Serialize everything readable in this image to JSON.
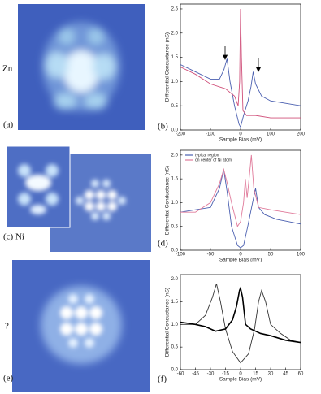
{
  "figure": {
    "labels": [
      "Zn",
      "(a)",
      "(b)",
      "(c) Ni",
      "(d)",
      "?",
      "(e)",
      "(f)"
    ]
  },
  "chart_data": [
    {
      "type": "line",
      "xlabel": "Sample Bias (mV)",
      "ylabel": "Differential Conductance (nS)",
      "xlim": [
        -200,
        200
      ],
      "xticks": [
        -200,
        -100,
        0,
        100,
        200
      ],
      "ylim": [
        0,
        2.6
      ],
      "yticks": [
        {
          "value": 0,
          "label": "0.0"
        },
        0.5,
        {
          "value": 1,
          "label": "1.0"
        },
        1.5,
        {
          "value": 2,
          "label": "2.0"
        },
        2.5
      ],
      "series": [
        {
          "color": "#4a5fb0",
          "x": [
            -200,
            -150,
            -100,
            -70,
            -55,
            -45,
            -35,
            -20,
            -5,
            0,
            10,
            25,
            35,
            42,
            50,
            70,
            100,
            150,
            200
          ],
          "values": [
            1.35,
            1.2,
            1.05,
            1.05,
            1.25,
            1.47,
            1.0,
            0.5,
            0.12,
            0.06,
            0.3,
            0.6,
            0.9,
            1.2,
            0.95,
            0.7,
            0.6,
            0.55,
            0.5
          ]
        },
        {
          "color": "#d0507a",
          "x": [
            -200,
            -150,
            -100,
            -50,
            -20,
            -8,
            -3,
            0,
            3,
            8,
            20,
            50,
            100,
            150,
            200
          ],
          "values": [
            1.3,
            1.15,
            0.95,
            0.85,
            0.7,
            0.5,
            1.0,
            2.5,
            1.5,
            0.4,
            0.3,
            0.3,
            0.25,
            0.25,
            0.25
          ]
        }
      ]
    },
    {
      "type": "line",
      "xlabel": "Sample Bias (mV)",
      "ylabel": "Differential Conductance (nS)",
      "xlim": [
        -100,
        100
      ],
      "xticks": [
        -100,
        -50,
        0,
        50,
        100
      ],
      "ylim": [
        0,
        2.1
      ],
      "yticks": [
        {
          "value": 0,
          "label": "0.0"
        },
        0.5,
        {
          "value": 1,
          "label": "1.0"
        },
        1.5,
        {
          "value": 2,
          "label": "2.0"
        }
      ],
      "series": [
        {
          "name": "typical region",
          "color": "#4a5fb0",
          "x": [
            -100,
            -75,
            -50,
            -35,
            -28,
            -22,
            -15,
            -5,
            0,
            5,
            12,
            20,
            25,
            30,
            40,
            60,
            80,
            100
          ],
          "values": [
            0.8,
            0.85,
            0.9,
            1.3,
            1.7,
            1.2,
            0.5,
            0.1,
            0.05,
            0.1,
            0.5,
            1.0,
            1.3,
            0.9,
            0.75,
            0.65,
            0.6,
            0.55
          ]
        },
        {
          "name": "on center of Ni atom",
          "color": "#e07a9a",
          "x": [
            -100,
            -75,
            -50,
            -35,
            -28,
            -22,
            -15,
            -5,
            0,
            5,
            8,
            11,
            15,
            18,
            22,
            30,
            50,
            75,
            100
          ],
          "values": [
            0.8,
            0.8,
            1.0,
            1.4,
            1.7,
            1.4,
            1.0,
            0.5,
            0.6,
            1.0,
            1.5,
            1.1,
            1.6,
            2.0,
            1.3,
            0.9,
            0.85,
            0.8,
            0.75
          ]
        }
      ],
      "legend": "upper left"
    },
    {
      "type": "line",
      "xlabel": "Sample Bias (mV)",
      "ylabel": "Differential Conductance (nS)",
      "xlim": [
        -60,
        60
      ],
      "xticks": [
        -60,
        -45,
        -30,
        -15,
        0,
        15,
        30,
        45,
        60
      ],
      "ylim": [
        0,
        2.1
      ],
      "yticks": [
        {
          "value": 0,
          "label": "0.0"
        },
        0.5,
        {
          "value": 1,
          "label": "1.0"
        },
        1.5,
        {
          "value": 2,
          "label": "2.0"
        }
      ],
      "series": [
        {
          "color": "#333333",
          "x": [
            -60,
            -45,
            -35,
            -28,
            -24,
            -20,
            -15,
            -8,
            0,
            8,
            14,
            18,
            21,
            25,
            30,
            40,
            50,
            60
          ],
          "values": [
            1.0,
            1.0,
            1.2,
            1.6,
            1.9,
            1.5,
            0.9,
            0.4,
            0.15,
            0.35,
            0.9,
            1.5,
            1.75,
            1.5,
            1.0,
            0.8,
            0.65,
            0.6
          ]
        },
        {
          "color": "#000000",
          "x": [
            -60,
            -45,
            -35,
            -25,
            -15,
            -8,
            -4,
            -1,
            0,
            2,
            5,
            10,
            20,
            30,
            45,
            60
          ],
          "values": [
            1.05,
            1.0,
            0.95,
            0.85,
            0.9,
            1.1,
            1.4,
            1.75,
            1.8,
            1.6,
            1.0,
            0.9,
            0.8,
            0.75,
            0.65,
            0.6
          ]
        }
      ]
    }
  ]
}
